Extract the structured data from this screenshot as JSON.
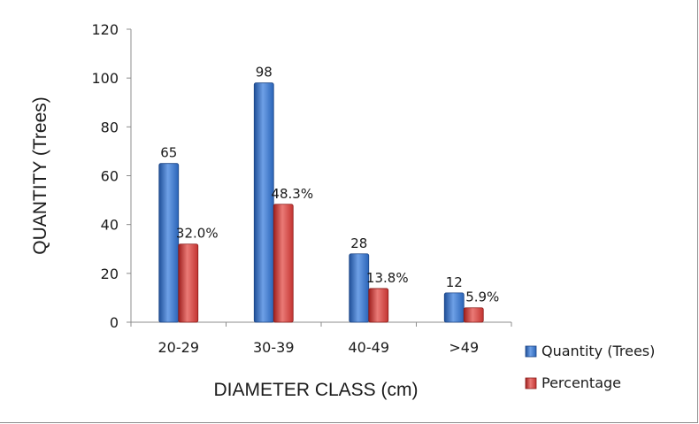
{
  "chart_data": {
    "type": "bar",
    "categories": [
      "20-29",
      "30-39",
      "40-49",
      ">49"
    ],
    "series": [
      {
        "name": "Quantity (Trees)",
        "values": [
          65,
          98,
          28,
          12
        ],
        "labels": [
          "65",
          "98",
          "28",
          "12"
        ],
        "color": "#2f6fc6"
      },
      {
        "name": "Percentage",
        "values": [
          32.0,
          48.3,
          13.8,
          5.9
        ],
        "labels": [
          "32.0%",
          "48.3%",
          "13.8%",
          "5.9%"
        ],
        "color": "#d63a36"
      }
    ],
    "xlabel": "DIAMETER CLASS (cm)",
    "ylabel": "QUANTITY  (Trees)",
    "ylim": [
      0,
      120
    ],
    "yticks": [
      "0",
      "20",
      "40",
      "60",
      "80",
      "100",
      "120"
    ],
    "grid": false,
    "legend": "bottom-right"
  }
}
